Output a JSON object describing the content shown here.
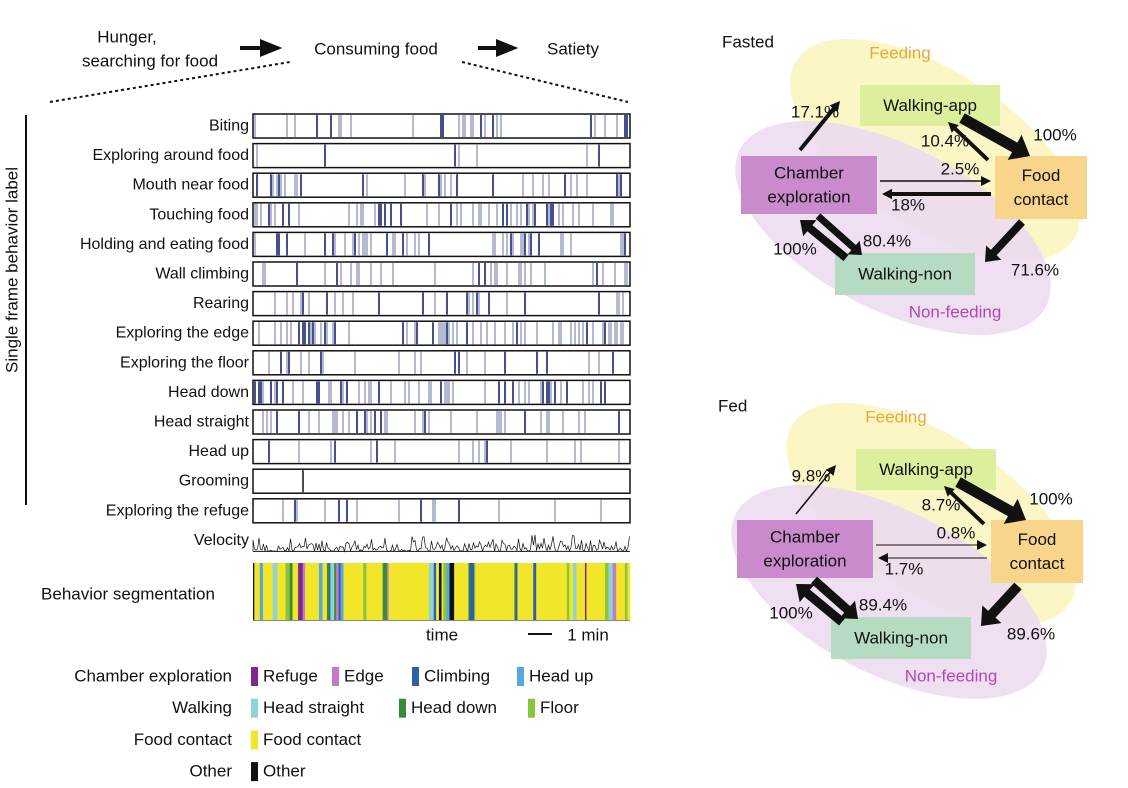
{
  "header": {
    "flow": [
      {
        "lines": [
          "Hunger,",
          "searching for food"
        ]
      },
      {
        "lines": [
          "Consuming food"
        ]
      },
      {
        "lines": [
          "Satiety"
        ]
      }
    ]
  },
  "raster": {
    "axis_label": "Single frame behavior label",
    "rows": [
      "Biting",
      "Exploring around food",
      "Mouth near food",
      "Touching food",
      "Holding and eating food",
      "Wall climbing",
      "Rearing",
      "Exploring the edge",
      "Exploring the floor",
      "Head down",
      "Head straight",
      "Head up",
      "Grooming",
      "Exploring the refuge",
      "Velocity"
    ],
    "segmentation_label": "Behavior segmentation",
    "time_label": "time",
    "scale_label": "1 min"
  },
  "legend": {
    "groups": [
      {
        "name": "Chamber exploration",
        "items": [
          {
            "label": "Refuge",
            "color": "#7b2a8a"
          },
          {
            "label": "Edge",
            "color": "#c47ac6"
          },
          {
            "label": "Climbing",
            "color": "#2f5fa8"
          },
          {
            "label": "Head up",
            "color": "#5aa7de"
          }
        ]
      },
      {
        "name": "Walking",
        "items": [
          {
            "label": "Head straight",
            "color": "#8fd3d4"
          },
          {
            "label": "Head down",
            "color": "#3a8c3a"
          },
          {
            "label": "Floor",
            "color": "#8cc43c"
          }
        ]
      },
      {
        "name": "Food contact",
        "items": [
          {
            "label": "Food contact",
            "color": "#f1e62a"
          }
        ]
      },
      {
        "name": "Other",
        "items": [
          {
            "label": "Other",
            "color": "#111111"
          }
        ]
      }
    ]
  },
  "diagrams": [
    {
      "title": "Fasted",
      "feeding_label": "Feeding",
      "nonfeeding_label": "Non-feeding",
      "nodes": [
        {
          "lines": [
            "Walking-app"
          ]
        },
        {
          "lines": [
            "Food",
            "contact"
          ]
        },
        {
          "lines": [
            "Chamber",
            "exploration"
          ]
        },
        {
          "lines": [
            "Walking-non"
          ]
        }
      ],
      "edges": [
        {
          "label": "17.1%"
        },
        {
          "label": "100%"
        },
        {
          "label": "10.4%"
        },
        {
          "label": "2.5%"
        },
        {
          "label": "18%"
        },
        {
          "label": "80.4%"
        },
        {
          "label": "100%"
        },
        {
          "label": "71.6%"
        }
      ]
    },
    {
      "title": "Fed",
      "feeding_label": "Feeding",
      "nonfeeding_label": "Non-feeding",
      "nodes": [
        {
          "lines": [
            "Walking-app"
          ]
        },
        {
          "lines": [
            "Food",
            "contact"
          ]
        },
        {
          "lines": [
            "Chamber",
            "exploration"
          ]
        },
        {
          "lines": [
            "Walking-non"
          ]
        }
      ],
      "edges": [
        {
          "label": "9.8%"
        },
        {
          "label": "100%"
        },
        {
          "label": "8.7%"
        },
        {
          "label": "0.8%"
        },
        {
          "label": "1.7%"
        },
        {
          "label": "89.4%"
        },
        {
          "label": "100%"
        },
        {
          "label": "89.6%"
        }
      ]
    }
  ]
}
